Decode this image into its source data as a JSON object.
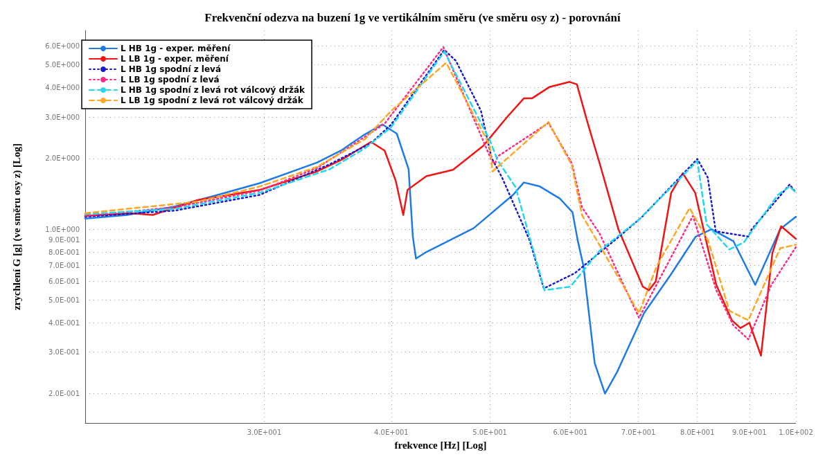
{
  "chart_data": {
    "type": "line",
    "title": "Frekvenční odezva na buzení 1g ve vertikálním směru (ve směru osy z) - porovnání",
    "xlabel": "frekvence [Hz] [Log]",
    "ylabel": "zrychlení G [g] (ve směru osy z) [Log]",
    "log": "xy",
    "grid": true,
    "legend": "top left",
    "marker": "none",
    "xlim": [
      20,
      100
    ],
    "ylim": [
      0.15,
      7
    ],
    "xticks": [
      {
        "value": 30,
        "label": "3.0E+001"
      },
      {
        "value": 40,
        "label": "4.0E+001"
      },
      {
        "value": 50,
        "label": "5.0E+001"
      },
      {
        "value": 60,
        "label": "6.0E+001"
      },
      {
        "value": 70,
        "label": "7.0E+001"
      },
      {
        "value": 80,
        "label": "8.0E+001"
      },
      {
        "value": 90,
        "label": "9.0E+001"
      },
      {
        "value": 100,
        "label": "1.0E+002"
      }
    ],
    "yticks": [
      {
        "value": 0.2,
        "label": "2.0E-001"
      },
      {
        "value": 0.3,
        "label": "3.0E-001"
      },
      {
        "value": 0.4,
        "label": "4.0E-001"
      },
      {
        "value": 0.5,
        "label": "5.0E-001"
      },
      {
        "value": 0.6,
        "label": "6.0E-001"
      },
      {
        "value": 0.7,
        "label": "7.0E-001"
      },
      {
        "value": 0.8,
        "label": "8.0E-001"
      },
      {
        "value": 0.9,
        "label": "9.0E-001"
      },
      {
        "value": 1,
        "label": "1.0E+000"
      },
      {
        "value": 2,
        "label": "2.0E+000"
      },
      {
        "value": 3,
        "label": "3.0E+000"
      },
      {
        "value": 4,
        "label": "4.0E+000"
      },
      {
        "value": 5,
        "label": "5.0E+000"
      },
      {
        "value": 6,
        "label": "6.0E+000"
      }
    ],
    "series": [
      {
        "name": "L HB 1g - exper. měření",
        "color": "#1e7be6",
        "line_style": "solid",
        "x": [
          20,
          22,
          24.5,
          27,
          29.7,
          33.8,
          35.7,
          37.5,
          39.2,
          40.5,
          41.6,
          42.0,
          42.3,
          43.3,
          48.2,
          52.7,
          54,
          56,
          58.6,
          60.3,
          61,
          61.8,
          63.4,
          64.9,
          66.7,
          70.9,
          75.3,
          79.7,
          82.6,
          86.8,
          91.2,
          96.5,
          100
        ],
        "values": [
          1.11,
          1.15,
          1.25,
          1.4,
          1.57,
          1.92,
          2.16,
          2.5,
          2.79,
          2.55,
          1.8,
          0.93,
          0.75,
          0.8,
          1.01,
          1.4,
          1.58,
          1.52,
          1.35,
          1.18,
          0.9,
          0.7,
          0.27,
          0.2,
          0.247,
          0.44,
          0.64,
          0.93,
          1.0,
          0.89,
          0.58,
          1.0,
          1.13
        ]
      },
      {
        "name": "L LB 1g - exper. měření",
        "color": "#f01414",
        "line_style": "solid",
        "x": [
          20,
          22.2,
          23.3,
          25.8,
          29.7,
          33.8,
          35.7,
          38.2,
          39.4,
          40.4,
          41.1,
          41.5,
          43.3,
          46,
          49.3,
          52,
          54,
          55,
          57.2,
          59.9,
          60.9,
          62.4,
          64.2,
          66.9,
          70.7,
          71.7,
          72.8,
          75.4,
          77.4,
          79.6,
          83.5,
          86.5,
          88.2,
          90,
          91.2,
          92.4,
          94.8,
          96.7,
          100
        ],
        "values": [
          1.14,
          1.17,
          1.15,
          1.33,
          1.47,
          1.76,
          1.97,
          2.35,
          2.16,
          1.61,
          1.15,
          1.47,
          1.68,
          1.79,
          2.27,
          3.0,
          3.6,
          3.6,
          4.02,
          4.23,
          4.13,
          2.83,
          1.87,
          1.0,
          0.57,
          0.55,
          0.6,
          1.43,
          1.73,
          1.43,
          0.58,
          0.41,
          0.38,
          0.4,
          0.34,
          0.29,
          0.79,
          1.03,
          0.91
        ]
      },
      {
        "name": "L HB 1g spodní z levá",
        "color": "#1a1acc",
        "line_style": "dotted",
        "x": [
          20,
          24.5,
          29.7,
          34.8,
          38.2,
          40,
          45.1,
          46.3,
          49,
          50.2,
          51.4,
          54.7,
          56.5,
          60.6,
          67,
          70.6,
          80,
          81.9,
          83.4,
          89.8,
          90.5,
          98.6,
          100
        ],
        "values": [
          1.13,
          1.2,
          1.4,
          1.89,
          2.32,
          2.79,
          5.79,
          5.2,
          3.19,
          2.01,
          1.66,
          0.9,
          0.56,
          0.65,
          0.93,
          1.13,
          1.99,
          1.66,
          0.98,
          0.93,
          1.0,
          1.55,
          1.43
        ]
      },
      {
        "name": "L LB 1g spodní z levá",
        "color": "#ff2a86",
        "line_style": "dotted",
        "x": [
          20,
          24.5,
          29.7,
          33.8,
          35.7,
          39.4,
          45,
          50.2,
          50.6,
          50.9,
          57.1,
          60.2,
          61.6,
          64.1,
          70.1,
          79.2,
          83.5,
          86.8,
          89.8,
          94.6,
          100
        ],
        "values": [
          1.14,
          1.24,
          1.46,
          1.82,
          2.12,
          2.81,
          5.95,
          1.96,
          1.9,
          2.04,
          2.83,
          1.91,
          1.24,
          0.96,
          0.42,
          1.14,
          0.55,
          0.39,
          0.34,
          0.58,
          0.84
        ]
      },
      {
        "name": "L HB 1g spodní z levá rot válcový držák",
        "color": "#22d6f0",
        "line_style": "dashed",
        "x": [
          20,
          24.5,
          29.7,
          34.8,
          37.7,
          40,
          45.1,
          50,
          50.9,
          53,
          56.6,
          60,
          64.1,
          70.1,
          80,
          81.7,
          86,
          88.9,
          96,
          98.6,
          100
        ],
        "values": [
          1.16,
          1.22,
          1.43,
          1.8,
          2.21,
          2.72,
          5.69,
          2.39,
          1.96,
          1.51,
          0.55,
          0.57,
          0.81,
          1.1,
          1.95,
          1.05,
          0.82,
          0.88,
          1.4,
          1.52,
          1.43
        ]
      },
      {
        "name": "L LB 1g spodní z levá rot válcový držák",
        "color": "#ffa624",
        "line_style": "dashed",
        "x": [
          20,
          25.8,
          29.7,
          33.8,
          37.7,
          40,
          45.3,
          50,
          50.3,
          57.1,
          60.2,
          61.6,
          70.1,
          73,
          78.6,
          82,
          86,
          89.8,
          96.5,
          100
        ],
        "values": [
          1.17,
          1.31,
          1.52,
          1.84,
          2.42,
          3.19,
          5.1,
          2.27,
          1.76,
          2.86,
          1.87,
          1.15,
          0.44,
          0.7,
          1.23,
          0.89,
          0.45,
          0.41,
          0.83,
          0.86
        ]
      }
    ]
  }
}
